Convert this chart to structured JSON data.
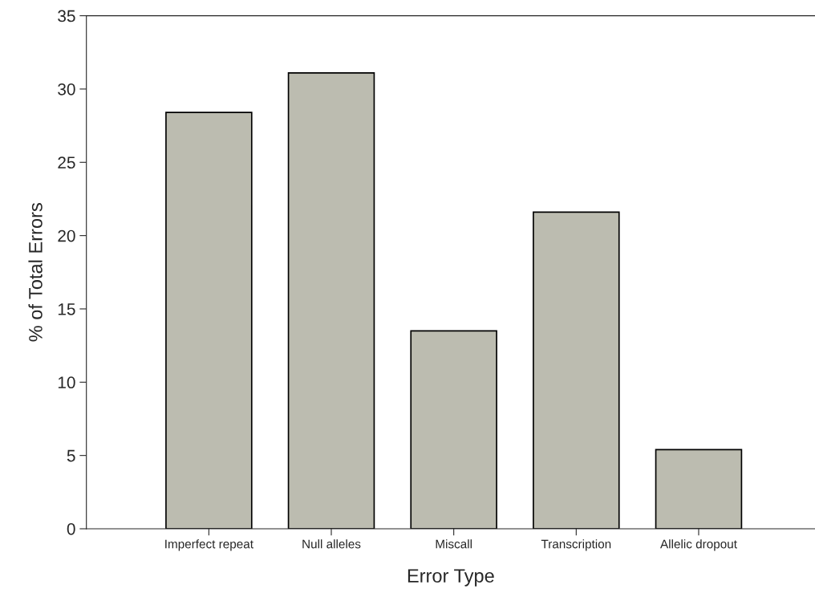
{
  "chart_data": {
    "type": "bar",
    "xlabel": "Error Type",
    "ylabel": "% of Total Errors",
    "categories": [
      "Imperfect repeat",
      "Null alleles",
      "Miscall",
      "Transcription",
      "Allelic dropout"
    ],
    "values": [
      28.4,
      31.1,
      13.5,
      21.6,
      5.4
    ],
    "color": "#bcbcb0",
    "ylim": [
      0,
      35
    ],
    "yticks": [
      0,
      5,
      10,
      15,
      20,
      25,
      30,
      35
    ],
    "grid": false,
    "legend": false
  }
}
